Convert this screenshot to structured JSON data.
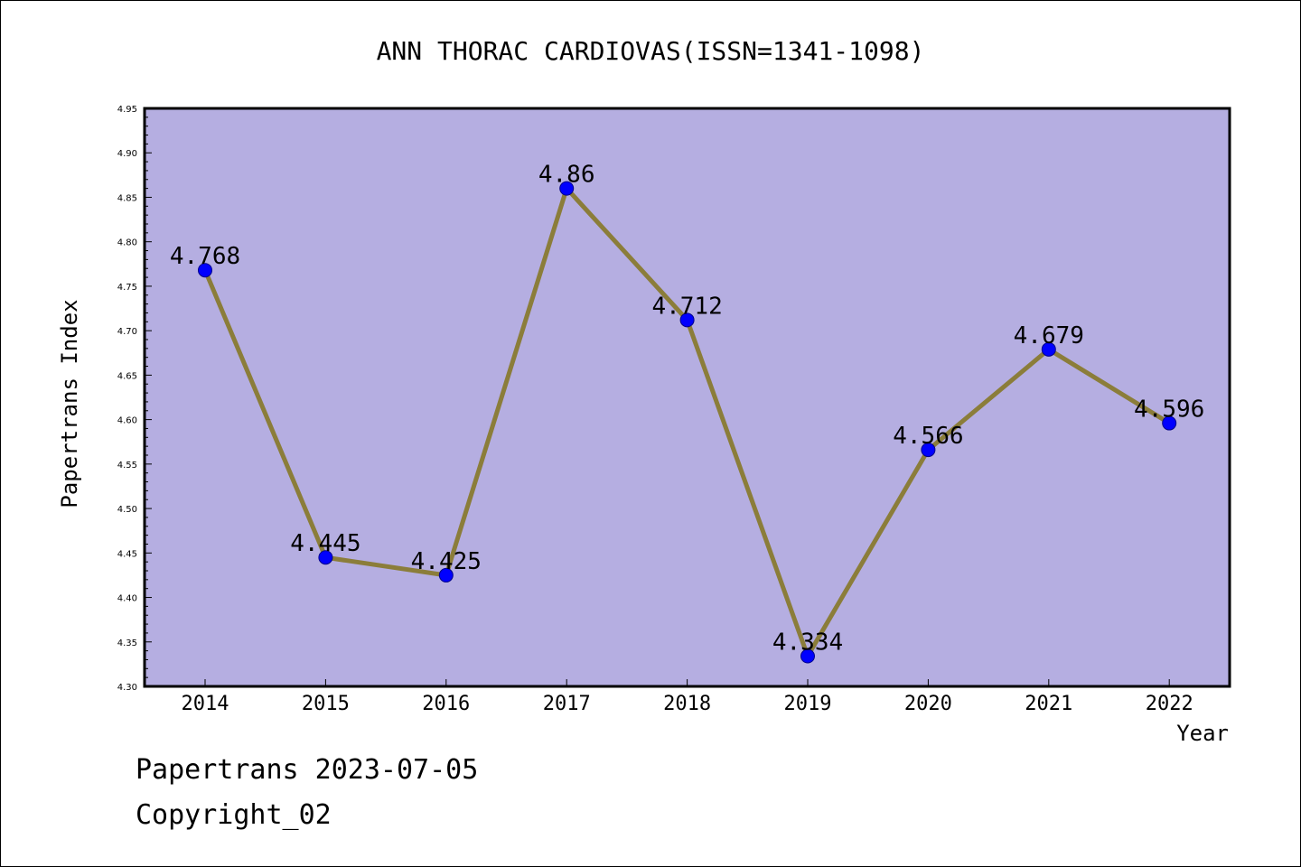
{
  "chart_data": {
    "type": "line",
    "title": "ANN THORAC CARDIOVAS(ISSN=1341-1098)",
    "xlabel": "Year",
    "ylabel": "Papertrans Index",
    "categories": [
      "2014",
      "2015",
      "2016",
      "2017",
      "2018",
      "2019",
      "2020",
      "2021",
      "2022"
    ],
    "series": [
      {
        "values": [
          4.768,
          4.445,
          4.425,
          4.86,
          4.712,
          4.334,
          4.566,
          4.679,
          4.596
        ],
        "labels": [
          "4.768",
          "4.445",
          "4.425",
          "4.86",
          "4.712",
          "4.334",
          "4.566",
          "4.679",
          "4.596"
        ]
      }
    ],
    "ylim": [
      4.3,
      4.95
    ],
    "y_ticks": [
      "4.30",
      "4.35",
      "4.40",
      "4.45",
      "4.50",
      "4.55",
      "4.60",
      "4.65",
      "4.70",
      "4.75",
      "4.80",
      "4.85",
      "4.90",
      "4.95"
    ],
    "grid": false,
    "legend": "none"
  },
  "footer": {
    "line1": "Papertrans 2023-07-05",
    "line2": "Copyright_02"
  },
  "colors": {
    "plot_background": "#b5aee1",
    "line": "#8b7d3a",
    "marker": "#0000ff",
    "marker_edge": "#00008b",
    "axis": "#000000"
  }
}
